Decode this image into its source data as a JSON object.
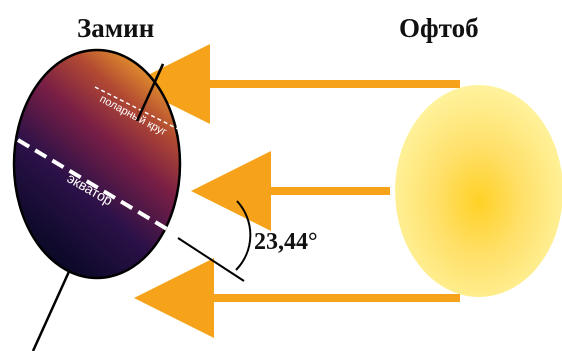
{
  "titles": {
    "earth": "Замин",
    "sun": "Офтоб"
  },
  "labels": {
    "polar_circle": "поларный круг",
    "equator": "экватор",
    "tilt_angle": "23,44°"
  },
  "colors": {
    "ray": "#f7a21b",
    "sun_core": "#ffd33b",
    "sun_edge": "#fff7a8",
    "earth_top": "#e7962c",
    "earth_mid": "#7a1f45",
    "earth_bottom": "#090824"
  }
}
